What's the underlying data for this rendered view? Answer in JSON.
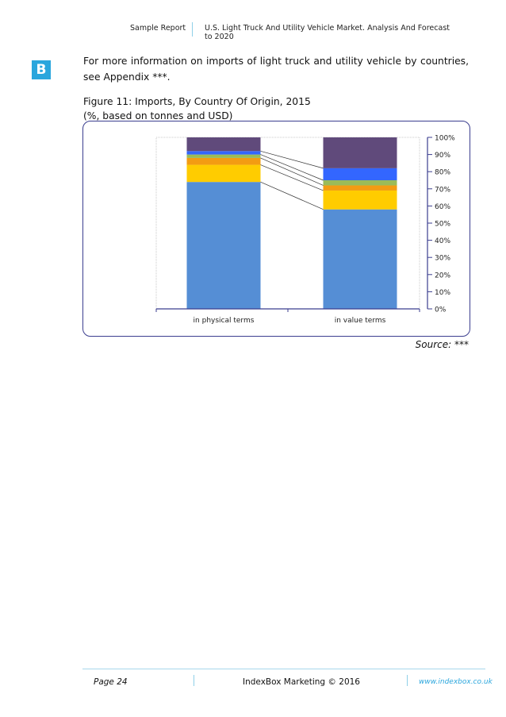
{
  "header": {
    "left": "Sample Report",
    "right": "U.S. Light Truck And Utility Vehicle Market. Analysis And Forecast to 2020"
  },
  "logo": {
    "letter": "B",
    "color": "#2aa6dd"
  },
  "body": {
    "paragraph": "For more information on imports of light truck and utility vehicle by countries, see Appendix ***.",
    "figure_title": "Figure 11: Imports, By Country Of Origin, 2015",
    "figure_subtitle": "(%, based on tonnes and USD)",
    "source": "Source: ***"
  },
  "chart_data": {
    "type": "bar",
    "stacked": true,
    "categories": [
      "in physical terms",
      "in value terms"
    ],
    "series": [
      {
        "color": "#558ed5",
        "values": [
          74,
          58
        ]
      },
      {
        "color": "#ffcc00",
        "values": [
          10,
          11
        ]
      },
      {
        "color": "#f39c12",
        "values": [
          4,
          3
        ]
      },
      {
        "color": "#9bbb59",
        "values": [
          2,
          3
        ]
      },
      {
        "color": "#3366ff",
        "values": [
          2,
          7
        ]
      },
      {
        "color": "#604a7b",
        "values": [
          8,
          18
        ]
      }
    ],
    "ylim": [
      0,
      100
    ],
    "yticks": [
      "0%",
      "10%",
      "20%",
      "30%",
      "40%",
      "50%",
      "60%",
      "70%",
      "80%",
      "90%",
      "100%"
    ],
    "connector_lines": true,
    "legend": "none",
    "grid": false
  },
  "footer": {
    "page": "Page 24",
    "center": "IndexBox Marketing © 2016",
    "website": "www.indexbox.co.uk"
  }
}
